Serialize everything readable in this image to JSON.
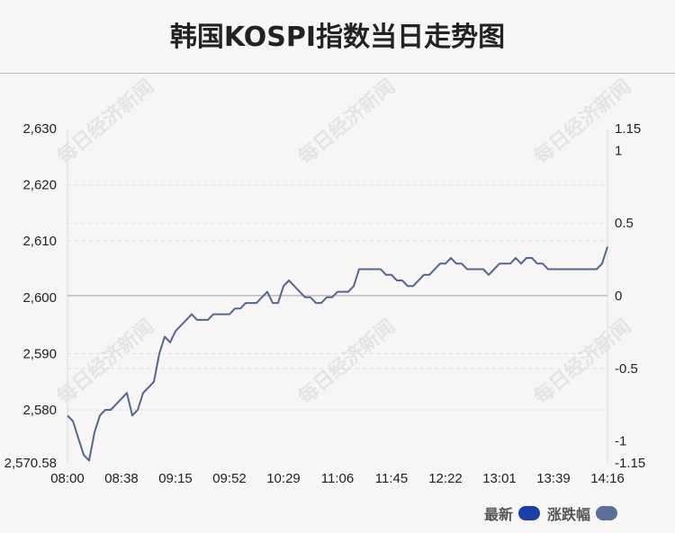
{
  "header": {
    "title": "韩国KOSPI指数当日走势图"
  },
  "watermark": "每日经济新闻",
  "legend": [
    {
      "label": "最新",
      "color": "#1a3fa8"
    },
    {
      "label": "涨跌幅",
      "color": "#5a6f9c"
    }
  ],
  "chart_data": {
    "type": "line",
    "x_ticks": [
      "08:00",
      "08:38",
      "09:15",
      "09:52",
      "10:29",
      "11:06",
      "11:45",
      "12:22",
      "13:01",
      "13:39",
      "14:16"
    ],
    "y_left_ticks": [
      "2,630",
      "2,620",
      "2,610",
      "2,600",
      "2,590",
      "2,580",
      "2,570.58"
    ],
    "y_left_values": [
      2630,
      2620,
      2610,
      2600,
      2590,
      2580,
      2570.58
    ],
    "ylim_left": [
      2570.58,
      2630
    ],
    "y_right_ticks": [
      "1.15",
      "1",
      "0.5",
      "0",
      "-0.5",
      "-1",
      "-1.15"
    ],
    "y_right_values": [
      1.15,
      1,
      0.5,
      0,
      -0.5,
      -1,
      -1.15
    ],
    "ylim_right": [
      -1.15,
      1.15
    ],
    "reference_value": 2600.3,
    "line_color": "#55668f",
    "series": [
      {
        "x_index": [
          0,
          2,
          4,
          6,
          8,
          10,
          12,
          14,
          16,
          18,
          20,
          22,
          24,
          26,
          28,
          30,
          32,
          34,
          36,
          38,
          40,
          42,
          44,
          46,
          48,
          50,
          52,
          54,
          56,
          58,
          60,
          62,
          64,
          66,
          68,
          70,
          72,
          74,
          76,
          78,
          80,
          82,
          84,
          86,
          88,
          90,
          92,
          94,
          96,
          98,
          100,
          102,
          104,
          106,
          108,
          110,
          112,
          114,
          116,
          118,
          120,
          122,
          124,
          126,
          128,
          130,
          132,
          134,
          136,
          138,
          140,
          142,
          144,
          146,
          148,
          150,
          152,
          154,
          156,
          158,
          160,
          162,
          164,
          166,
          168,
          170,
          172,
          174,
          176,
          178,
          180,
          182,
          184,
          186,
          188,
          190,
          192,
          194,
          196,
          198,
          200
        ],
        "values": [
          2579,
          2578,
          2575,
          2572,
          2571,
          2576,
          2579,
          2580,
          2580,
          2581,
          2582,
          2583,
          2579,
          2580,
          2583,
          2584,
          2585,
          2590,
          2593,
          2592,
          2594,
          2595,
          2596,
          2597,
          2596,
          2596,
          2596,
          2597,
          2597,
          2597,
          2597,
          2598,
          2598,
          2599,
          2599,
          2599,
          2600,
          2601,
          2599,
          2599,
          2602,
          2603,
          2602,
          2601,
          2600,
          2600,
          2599,
          2599,
          2600,
          2600,
          2601,
          2601,
          2601,
          2602,
          2605,
          2605,
          2605,
          2605,
          2605,
          2604,
          2604,
          2603,
          2603,
          2602,
          2602,
          2603,
          2604,
          2604,
          2605,
          2606,
          2606,
          2607,
          2606,
          2606,
          2605,
          2605,
          2605,
          2605,
          2604,
          2605,
          2606,
          2606,
          2606,
          2607,
          2606,
          2607,
          2607,
          2606,
          2606,
          2605,
          2605,
          2605,
          2605,
          2605,
          2605,
          2605,
          2605,
          2605,
          2605,
          2606,
          2609
        ]
      }
    ],
    "grid": "horizontal dashed",
    "legend_placement": "bottom-right"
  }
}
